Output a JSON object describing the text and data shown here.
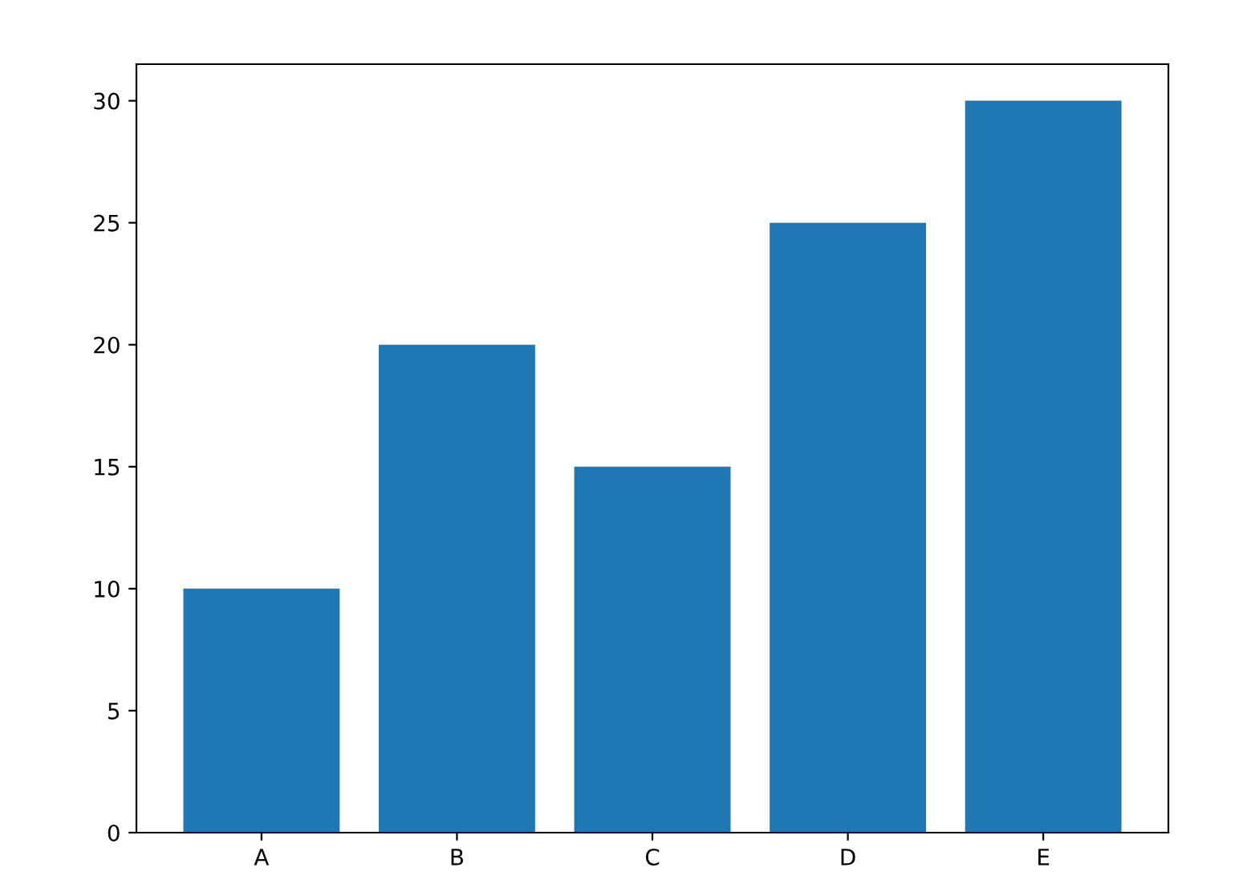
{
  "chart_data": {
    "type": "bar",
    "categories": [
      "A",
      "B",
      "C",
      "D",
      "E"
    ],
    "values": [
      10,
      20,
      15,
      25,
      30
    ],
    "color": "#1f77b4",
    "ylim": [
      0,
      31.5
    ],
    "yticks": [
      0,
      5,
      10,
      15,
      20,
      25,
      30
    ],
    "grid": false
  }
}
